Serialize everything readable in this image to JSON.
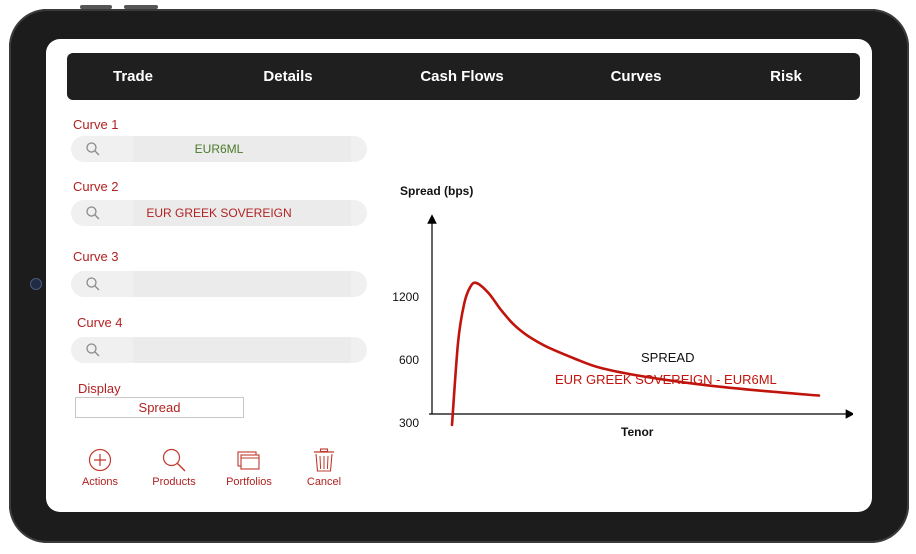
{
  "nav": {
    "tabs": [
      {
        "label": "Trade"
      },
      {
        "label": "Details"
      },
      {
        "label": "Cash Flows"
      },
      {
        "label": "Curves"
      },
      {
        "label": "Risk"
      }
    ]
  },
  "form": {
    "curve1": {
      "label": "Curve 1",
      "value": "EUR6ML"
    },
    "curve2": {
      "label": "Curve 2",
      "value": "EUR GREEK SOVEREIGN"
    },
    "curve3": {
      "label": "Curve 3",
      "value": ""
    },
    "curve4": {
      "label": "Curve 4",
      "value": ""
    },
    "display": {
      "label": "Display",
      "value": "Spread"
    }
  },
  "actions": [
    {
      "label": "Actions",
      "icon": "plus-circle-icon"
    },
    {
      "label": "Products",
      "icon": "search-icon"
    },
    {
      "label": "Portfolios",
      "icon": "folders-icon"
    },
    {
      "label": "Cancel",
      "icon": "trash-icon"
    }
  ],
  "colors": {
    "accent": "#b22222",
    "curve1_value": "#4a7a2a",
    "curve_line": "#c0140c",
    "navbar": "#1f1f1f"
  },
  "chart_data": {
    "type": "line",
    "ylabel": "Spread (bps)",
    "xlabel": "Tenor",
    "yticks": [
      300,
      600,
      1200
    ],
    "annotation": {
      "line1": "SPREAD",
      "line2": "EUR GREEK SOVEREIGN - EUR6ML"
    },
    "x": [
      0,
      0.5,
      1,
      1.5,
      2,
      3,
      4,
      5,
      6,
      7,
      8,
      10,
      12,
      15,
      20,
      25,
      30
    ],
    "values": [
      250,
      900,
      1200,
      1330,
      1360,
      1280,
      1150,
      1040,
      960,
      900,
      850,
      770,
      700,
      640,
      570,
      520,
      480
    ],
    "ylim": [
      100,
      1600
    ],
    "xlim": [
      -1,
      31
    ]
  }
}
